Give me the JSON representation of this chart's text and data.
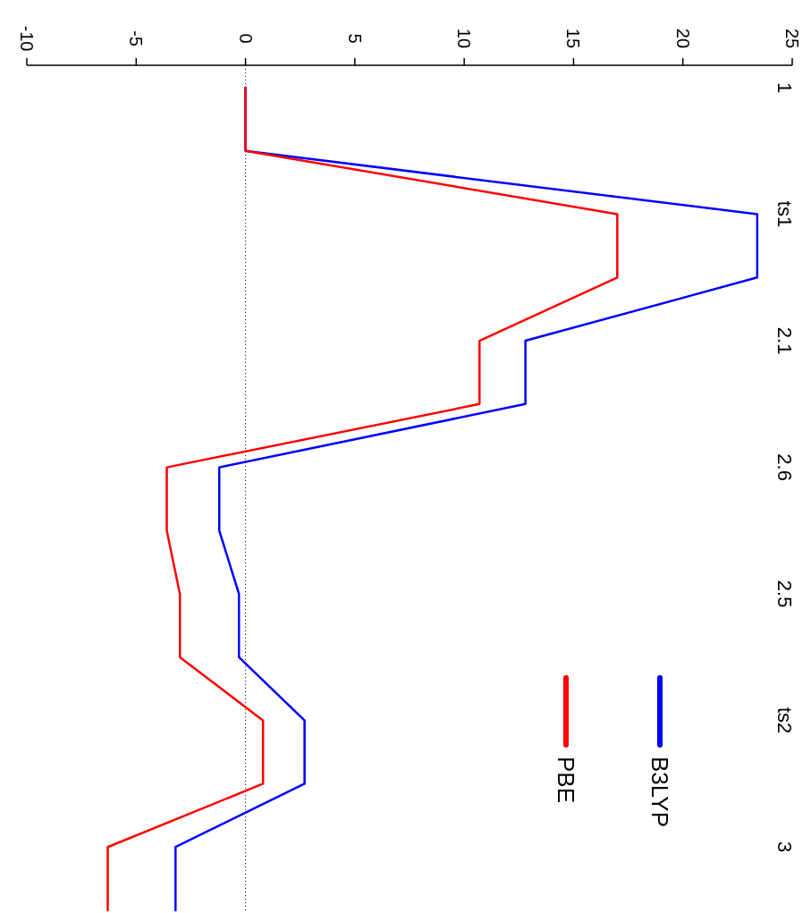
{
  "chart_data": {
    "type": "line",
    "orientation": "horizontal",
    "categories": [
      "1",
      null,
      "ts1",
      null,
      "2.1",
      null,
      "2.6",
      null,
      "2.5",
      null,
      "ts2",
      null,
      "3",
      null
    ],
    "series": [
      {
        "name": "B3LYP",
        "color": "#0000ff",
        "values": [
          0,
          0,
          23.4,
          23.4,
          12.8,
          12.8,
          -1.2,
          -1.2,
          -0.3,
          -0.3,
          2.7,
          2.7,
          -3.2,
          -3.2
        ]
      },
      {
        "name": "PBE",
        "color": "#ff0000",
        "values": [
          0,
          0,
          17.0,
          17.0,
          10.7,
          10.7,
          -3.6,
          -3.6,
          -3.0,
          -3.0,
          0.8,
          0.8,
          -6.3,
          -6.3
        ]
      }
    ],
    "xlim": [
      -10,
      25
    ],
    "xticks": [
      -10,
      -5,
      0,
      5,
      10,
      15,
      20,
      25
    ],
    "ref_lines": [
      {
        "axis": "x",
        "value": 0,
        "line_style": "dotted",
        "color": "#000000"
      }
    ],
    "legend": "bottom right",
    "grid": false
  }
}
